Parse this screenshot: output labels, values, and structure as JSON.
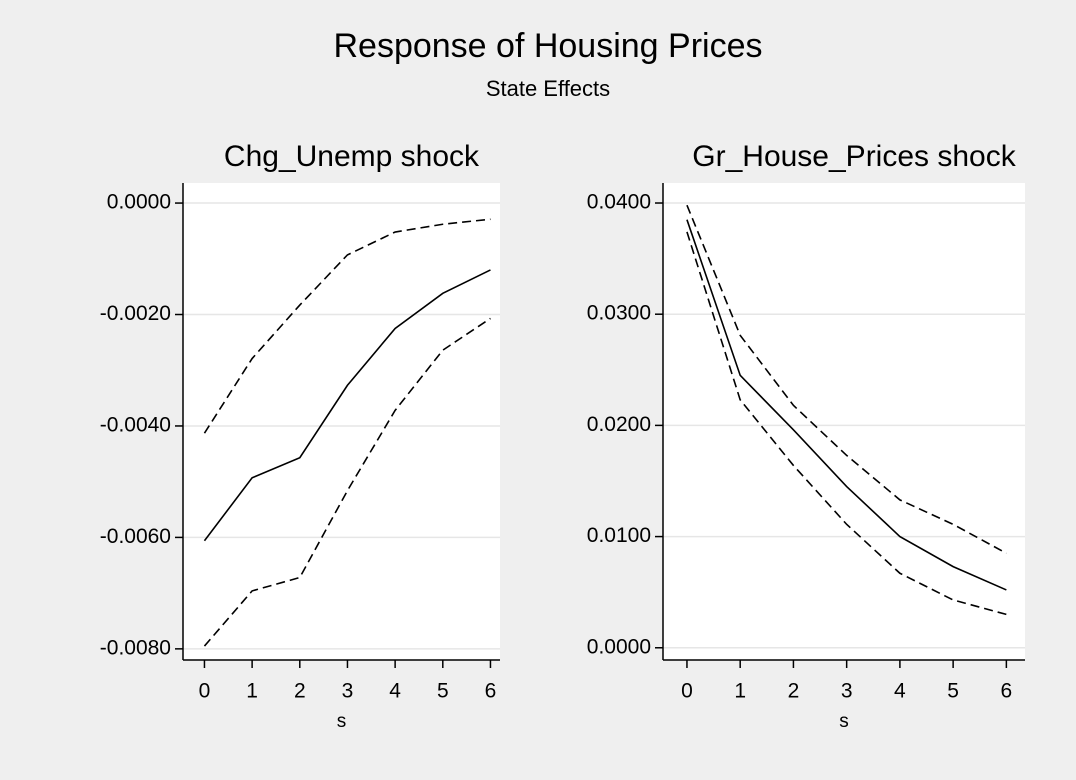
{
  "title": "Response of Housing Prices",
  "subtitle": "State Effects",
  "chart_data": [
    {
      "type": "line",
      "title": "Chg_Unemp shock",
      "x_label": "s",
      "x": [
        0,
        1,
        2,
        3,
        4,
        5,
        6
      ],
      "xlim": [
        -0.45,
        6.2
      ],
      "xticks": [
        0,
        1,
        2,
        3,
        4,
        5,
        6
      ],
      "ylim": [
        -0.0082,
        0.00036
      ],
      "yticks": [
        {
          "value": -0.008,
          "label": "-0.0080"
        },
        {
          "value": -0.006,
          "label": "-0.0060"
        },
        {
          "value": -0.004,
          "label": "-0.0040"
        },
        {
          "value": -0.002,
          "label": "-0.0020"
        },
        {
          "value": 0,
          "label": "0.0000"
        }
      ],
      "grid": true,
      "series": [
        {
          "color": "#000000",
          "dash": false,
          "values": [
            -0.00606,
            -0.00493,
            -0.00457,
            -0.00327,
            -0.00225,
            -0.00162,
            -0.0012
          ]
        },
        {
          "color": "#000000",
          "dash": true,
          "values": [
            -0.00413,
            -0.00279,
            -0.00183,
            -0.00093,
            -0.00052,
            -0.00038,
            -0.00029
          ]
        },
        {
          "color": "#000000",
          "dash": true,
          "values": [
            -0.00795,
            -0.00696,
            -0.00672,
            -0.00516,
            -0.00372,
            -0.00264,
            -0.00207
          ]
        }
      ]
    },
    {
      "type": "line",
      "title": "Gr_House_Prices shock",
      "x_label": "s",
      "x": [
        0,
        1,
        2,
        3,
        4,
        5,
        6
      ],
      "xlim": [
        -0.45,
        6.35
      ],
      "xticks": [
        0,
        1,
        2,
        3,
        4,
        5,
        6
      ],
      "ylim": [
        -0.0011,
        0.0418
      ],
      "yticks": [
        {
          "value": 0,
          "label": "0.0000"
        },
        {
          "value": 0.01,
          "label": "0.0100"
        },
        {
          "value": 0.02,
          "label": "0.0200"
        },
        {
          "value": 0.03,
          "label": "0.0300"
        },
        {
          "value": 0.04,
          "label": "0.0400"
        }
      ],
      "grid": true,
      "series": [
        {
          "color": "#000000",
          "dash": false,
          "values": [
            0.0385,
            0.0245,
            0.0196,
            0.0145,
            0.01,
            0.0073,
            0.0052
          ]
        },
        {
          "color": "#000000",
          "dash": true,
          "values": [
            0.0398,
            0.0281,
            0.0218,
            0.0173,
            0.0133,
            0.0111,
            0.0085
          ]
        },
        {
          "color": "#000000",
          "dash": true,
          "values": [
            0.0374,
            0.0223,
            0.0164,
            0.0111,
            0.0067,
            0.0043,
            0.003
          ]
        }
      ]
    }
  ]
}
